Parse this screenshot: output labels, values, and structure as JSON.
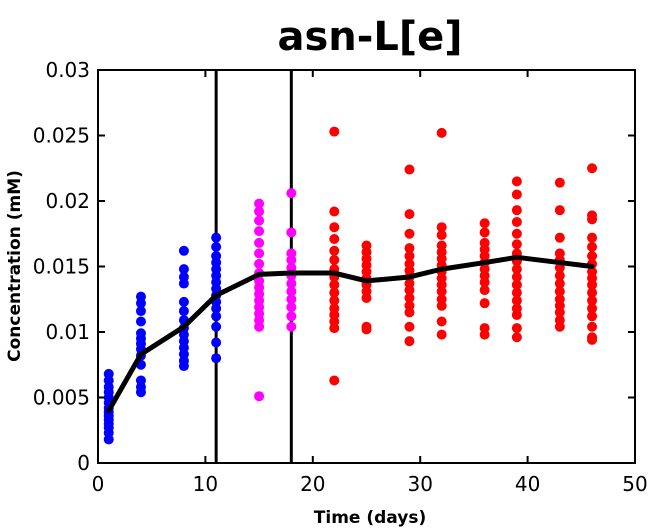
{
  "chart_data": {
    "type": "scatter",
    "title": "asn-L[e]",
    "xlabel": "Time (days)",
    "ylabel": "Concentration (mM)",
    "xlim": [
      0,
      50
    ],
    "ylim": [
      0,
      0.03
    ],
    "x_ticks": [
      "0",
      "10",
      "20",
      "30",
      "40",
      "50"
    ],
    "y_ticks": [
      "0",
      "0.005",
      "0.01",
      "0.015",
      "0.02",
      "0.025",
      "0.03"
    ],
    "grid": false,
    "vertical_lines": [
      11,
      18
    ],
    "colors": {
      "phase1": "#0000ff",
      "phase2": "#ff00ff",
      "phase3": "#ff0000",
      "mean": "#000000"
    },
    "scatter_groups": [
      {
        "x": 1,
        "color": "#0000ff",
        "y": [
          0.0018,
          0.0023,
          0.0027,
          0.003,
          0.0033,
          0.0036,
          0.0039,
          0.0042,
          0.0046,
          0.005,
          0.0054,
          0.0058,
          0.0063,
          0.0068
        ]
      },
      {
        "x": 4,
        "color": "#0000ff",
        "y": [
          0.0054,
          0.0058,
          0.0063,
          0.0075,
          0.0082,
          0.0087,
          0.0091,
          0.0095,
          0.0099,
          0.0108,
          0.0116,
          0.0122,
          0.0127
        ]
      },
      {
        "x": 8,
        "color": "#0000ff",
        "y": [
          0.0074,
          0.0078,
          0.0083,
          0.0088,
          0.0093,
          0.0098,
          0.0103,
          0.0109,
          0.0116,
          0.0123,
          0.0137,
          0.0142,
          0.0148,
          0.0162
        ]
      },
      {
        "x": 11,
        "color": "#0000ff",
        "y": [
          0.008,
          0.0092,
          0.0104,
          0.0112,
          0.0118,
          0.0123,
          0.0128,
          0.0133,
          0.0138,
          0.0143,
          0.0148,
          0.0153,
          0.0158,
          0.0165,
          0.0172
        ]
      },
      {
        "x": 15,
        "color": "#ff00ff",
        "y": [
          0.0051,
          0.0104,
          0.0109,
          0.0114,
          0.0119,
          0.0124,
          0.0129,
          0.0134,
          0.0139,
          0.0145,
          0.0152,
          0.016,
          0.0168,
          0.0177,
          0.0185,
          0.0192,
          0.0198
        ]
      },
      {
        "x": 18,
        "color": "#ff00ff",
        "y": [
          0.0104,
          0.0112,
          0.0119,
          0.0125,
          0.0131,
          0.0137,
          0.0143,
          0.0149,
          0.0155,
          0.016,
          0.0176,
          0.0206
        ]
      },
      {
        "x": 22,
        "color": "#ff0000",
        "y": [
          0.0063,
          0.0103,
          0.0108,
          0.0113,
          0.0118,
          0.0124,
          0.013,
          0.0136,
          0.0142,
          0.0148,
          0.0155,
          0.0162,
          0.0171,
          0.018,
          0.0192,
          0.0253
        ]
      },
      {
        "x": 25,
        "color": "#ff0000",
        "y": [
          0.0102,
          0.0104,
          0.0126,
          0.0131,
          0.0136,
          0.0141,
          0.0146,
          0.0151,
          0.0156,
          0.0161,
          0.0166
        ]
      },
      {
        "x": 29,
        "color": "#ff0000",
        "y": [
          0.0093,
          0.0104,
          0.0115,
          0.012,
          0.0126,
          0.0132,
          0.0137,
          0.0142,
          0.0147,
          0.0152,
          0.0158,
          0.0164,
          0.0175,
          0.019,
          0.0224
        ]
      },
      {
        "x": 32,
        "color": "#ff0000",
        "y": [
          0.0098,
          0.0108,
          0.012,
          0.0125,
          0.0131,
          0.0136,
          0.0141,
          0.0146,
          0.0151,
          0.0156,
          0.0161,
          0.0166,
          0.0174,
          0.018,
          0.0252
        ]
      },
      {
        "x": 36,
        "color": "#ff0000",
        "y": [
          0.0098,
          0.0103,
          0.0122,
          0.0132,
          0.0138,
          0.0143,
          0.0148,
          0.0153,
          0.0158,
          0.0163,
          0.0168,
          0.0176,
          0.0183
        ]
      },
      {
        "x": 39,
        "color": "#ff0000",
        "y": [
          0.0096,
          0.0103,
          0.0113,
          0.0118,
          0.0124,
          0.013,
          0.0136,
          0.0142,
          0.0148,
          0.0154,
          0.016,
          0.0167,
          0.0175,
          0.0184,
          0.0193,
          0.0205,
          0.0215
        ]
      },
      {
        "x": 43,
        "color": "#ff0000",
        "y": [
          0.0104,
          0.0109,
          0.0115,
          0.012,
          0.0125,
          0.0131,
          0.0137,
          0.0143,
          0.0149,
          0.0155,
          0.016,
          0.0172,
          0.0193,
          0.0214
        ]
      },
      {
        "x": 46,
        "color": "#ff0000",
        "y": [
          0.0094,
          0.0096,
          0.0104,
          0.0112,
          0.0118,
          0.0124,
          0.013,
          0.0136,
          0.0141,
          0.0146,
          0.0152,
          0.0158,
          0.0165,
          0.0172,
          0.0186,
          0.0189,
          0.0225
        ]
      }
    ],
    "mean_line": {
      "x": [
        1,
        4,
        8,
        11,
        15,
        18,
        22,
        25,
        29,
        32,
        36,
        39,
        43,
        46
      ],
      "y": [
        0.004,
        0.0083,
        0.0104,
        0.0128,
        0.0144,
        0.0145,
        0.0145,
        0.0139,
        0.0142,
        0.0148,
        0.0153,
        0.0157,
        0.0153,
        0.015
      ]
    }
  }
}
